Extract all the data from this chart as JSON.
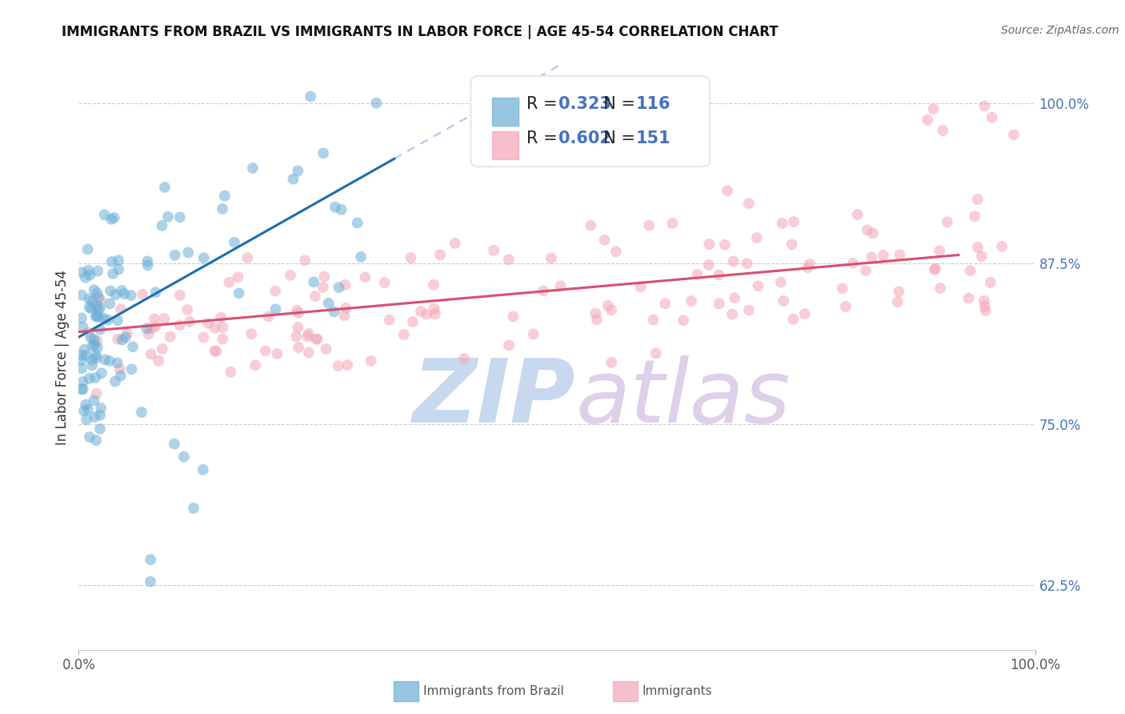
{
  "title": "IMMIGRANTS FROM BRAZIL VS IMMIGRANTS IN LABOR FORCE | AGE 45-54 CORRELATION CHART",
  "source_text": "Source: ZipAtlas.com",
  "ylabel": "In Labor Force | Age 45-54",
  "legend_label1": "Immigrants from Brazil",
  "legend_label2": "Immigrants",
  "R1": 0.323,
  "N1": 116,
  "R2": 0.602,
  "N2": 151,
  "xlim": [
    0.0,
    1.0
  ],
  "ylim": [
    0.575,
    1.03
  ],
  "yticks": [
    0.625,
    0.75,
    0.875,
    1.0
  ],
  "ytick_labels": [
    "62.5%",
    "75.0%",
    "87.5%",
    "100.0%"
  ],
  "xtick_labels": [
    "0.0%",
    "100.0%"
  ],
  "blue_color": "#6baed6",
  "pink_color": "#f4a5b5",
  "blue_line_color": "#1a6faf",
  "pink_line_color": "#d94f70",
  "dashed_line_color": "#aec7e8",
  "watermark_color_zip": "#c8d8ee",
  "watermark_color_atlas": "#ddd0e8",
  "background_color": "#ffffff",
  "text_color_dark": "#333333",
  "text_color_blue": "#4472c4",
  "grid_color": "#cccccc",
  "blue_slope": 0.42,
  "blue_intercept": 0.818,
  "pink_slope": 0.065,
  "pink_intercept": 0.822
}
